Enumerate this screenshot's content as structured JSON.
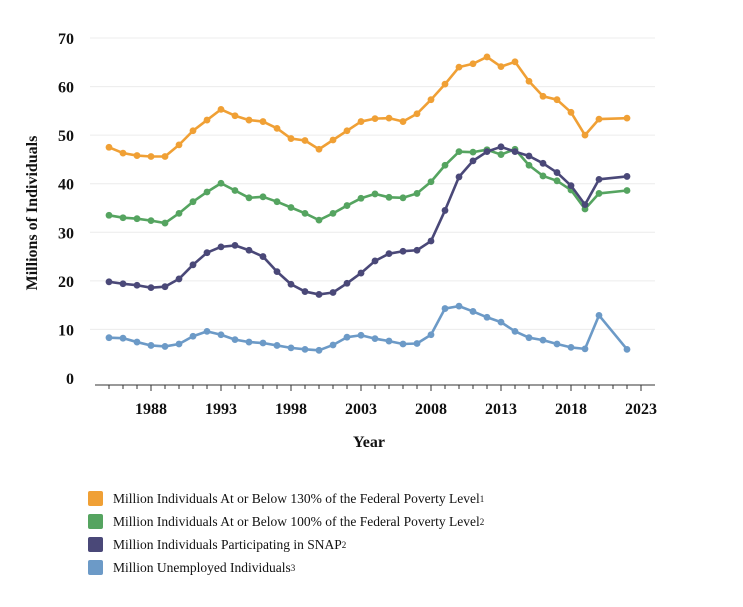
{
  "chart_data": {
    "type": "line",
    "title": "",
    "xlabel": "Year",
    "ylabel": "Millions of Individuals",
    "xlim": [
      1984,
      2024
    ],
    "ylim": [
      0,
      70
    ],
    "x_ticks": [
      1988,
      1993,
      1998,
      2003,
      2008,
      2013,
      2018,
      2023
    ],
    "y_ticks": [
      0,
      10,
      20,
      30,
      40,
      50,
      60,
      70
    ],
    "grid": "horizontal",
    "legend_position": "bottom-left",
    "x": [
      1985,
      1986,
      1987,
      1988,
      1989,
      1990,
      1991,
      1992,
      1993,
      1994,
      1995,
      1996,
      1997,
      1998,
      1999,
      2000,
      2001,
      2002,
      2003,
      2004,
      2005,
      2006,
      2007,
      2008,
      2009,
      2010,
      2011,
      2012,
      2013,
      2014,
      2015,
      2016,
      2017,
      2018,
      2019,
      2020,
      2022
    ],
    "series": [
      {
        "name": "Million Individuals At or Below 130% of the Federal Poverty Level",
        "footnote": "1",
        "color": "#f0a035",
        "values": [
          47.5,
          46.3,
          45.8,
          45.6,
          45.6,
          48.0,
          50.9,
          53.1,
          55.3,
          54.0,
          53.1,
          52.8,
          51.4,
          49.3,
          48.9,
          47.1,
          49.0,
          50.9,
          52.8,
          53.4,
          53.5,
          52.8,
          54.4,
          57.3,
          60.5,
          64.0,
          64.7,
          66.1,
          64.1,
          65.1,
          61.1,
          58.0,
          57.3,
          54.7,
          50.0,
          53.3,
          53.5
        ]
      },
      {
        "name": "Million Individuals At or Below 100% of the Federal Poverty Level",
        "footnote": "2",
        "color": "#55a460",
        "values": [
          33.5,
          33.0,
          32.8,
          32.4,
          31.9,
          33.9,
          36.3,
          38.3,
          40.1,
          38.6,
          37.1,
          37.3,
          36.3,
          35.1,
          33.9,
          32.5,
          33.9,
          35.5,
          37.0,
          37.9,
          37.2,
          37.1,
          38.0,
          40.4,
          43.8,
          46.6,
          46.5,
          47.0,
          46.0,
          47.1,
          43.8,
          41.6,
          40.6,
          38.7,
          34.8,
          38.0,
          38.6
        ]
      },
      {
        "name": "Million Individuals Participating in SNAP",
        "footnote": "2",
        "color": "#4a4878",
        "values": [
          19.8,
          19.4,
          19.1,
          18.6,
          18.8,
          20.4,
          23.3,
          25.8,
          27.0,
          27.3,
          26.3,
          25.0,
          21.9,
          19.3,
          17.8,
          17.2,
          17.6,
          19.5,
          21.6,
          24.1,
          25.6,
          26.1,
          26.3,
          28.2,
          34.5,
          41.4,
          44.7,
          46.6,
          47.6,
          46.6,
          45.7,
          44.2,
          42.3,
          39.6,
          35.7,
          40.9,
          41.5
        ]
      },
      {
        "name": "Million Unemployed Individuals",
        "footnote": "3",
        "color": "#6c9ac7",
        "values": [
          8.3,
          8.2,
          7.4,
          6.7,
          6.5,
          7.0,
          8.6,
          9.6,
          8.9,
          7.9,
          7.4,
          7.2,
          6.7,
          6.2,
          5.9,
          5.7,
          6.8,
          8.4,
          8.8,
          8.1,
          7.6,
          7.0,
          7.1,
          8.9,
          14.3,
          14.8,
          13.7,
          12.5,
          11.5,
          9.6,
          8.3,
          7.8,
          7.0,
          6.3,
          6.0,
          12.9,
          5.9
        ]
      }
    ]
  }
}
